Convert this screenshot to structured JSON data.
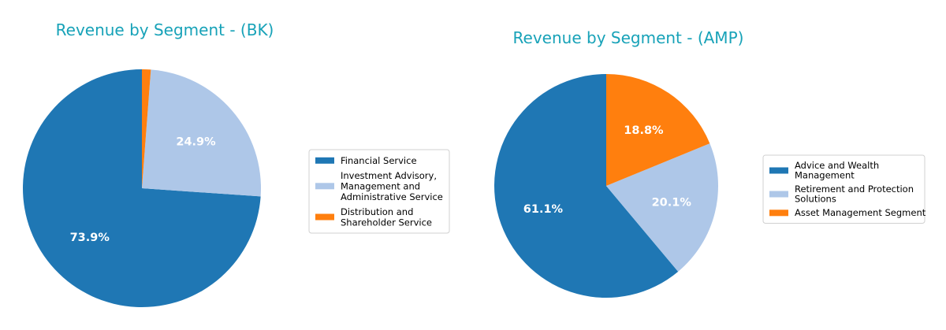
{
  "chart_data": [
    {
      "type": "pie",
      "title": "Revenue by Segment - (BK)",
      "slices": [
        {
          "label": "Financial Service",
          "value": 73.9,
          "pct_label": "73.9%",
          "color": "#1f77b4"
        },
        {
          "label": "Investment Advisory, Management and Administrative Service",
          "value": 24.9,
          "pct_label": "24.9%",
          "color": "#aec7e8"
        },
        {
          "label": "Distribution and Shareholder Service",
          "value": 1.2,
          "pct_label": "",
          "color": "#ff7f0e"
        }
      ],
      "legend": {
        "placement": "right",
        "entries": [
          [
            "Financial Service"
          ],
          [
            "Investment Advisory,",
            "Management and",
            "Administrative Service"
          ],
          [
            "Distribution and",
            "Shareholder Service"
          ]
        ]
      }
    },
    {
      "type": "pie",
      "title": "Revenue by Segment - (AMP)",
      "slices": [
        {
          "label": "Advice and Wealth Management",
          "value": 61.1,
          "pct_label": "61.1%",
          "color": "#1f77b4"
        },
        {
          "label": "Retirement and Protection Solutions",
          "value": 20.1,
          "pct_label": "20.1%",
          "color": "#aec7e8"
        },
        {
          "label": "Asset Management Segment",
          "value": 18.8,
          "pct_label": "18.8%",
          "color": "#ff7f0e"
        }
      ],
      "legend": {
        "placement": "right",
        "entries": [
          [
            "Advice and Wealth",
            "Management"
          ],
          [
            "Retirement and Protection",
            "Solutions"
          ],
          [
            "Asset Management Segment"
          ]
        ]
      }
    }
  ]
}
